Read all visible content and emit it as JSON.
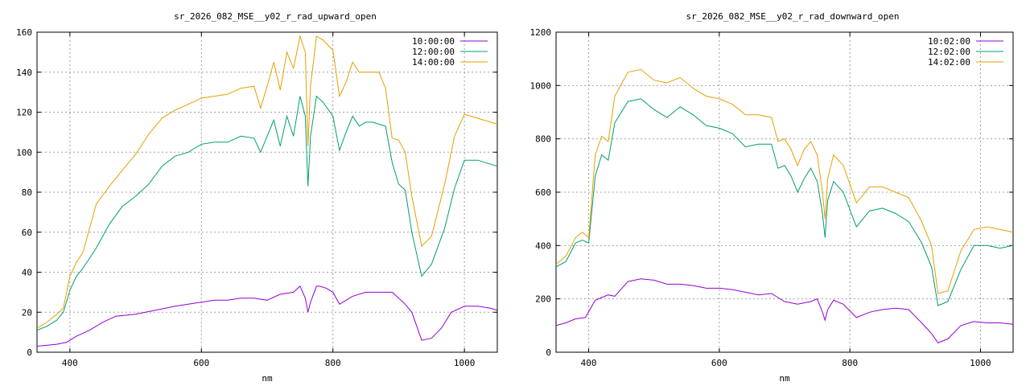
{
  "chart_data": [
    {
      "type": "line",
      "title": "sr_2026_082_MSE__y02_r_rad_upward_open",
      "xlabel": "nm",
      "ylabel": "",
      "xlim": [
        350,
        1050
      ],
      "ylim": [
        0,
        160
      ],
      "xticks": [
        "400",
        "600",
        "800",
        "1000"
      ],
      "xtick_values": [
        400,
        600,
        800,
        1000
      ],
      "yticks": [
        "0",
        "20",
        "40",
        "60",
        "80",
        "100",
        "120",
        "140",
        "160"
      ],
      "ytick_values": [
        0,
        20,
        40,
        60,
        80,
        100,
        120,
        140,
        160
      ],
      "grid": true,
      "legend_position": "top-right",
      "series": [
        {
          "name": "10:00:00",
          "color": "#9400d3",
          "x": [
            350,
            380,
            395,
            410,
            430,
            450,
            470,
            500,
            530,
            560,
            580,
            600,
            620,
            640,
            660,
            680,
            700,
            720,
            740,
            750,
            758,
            762,
            766,
            775,
            780,
            790,
            800,
            810,
            830,
            850,
            870,
            890,
            900,
            910,
            920,
            935,
            950,
            965,
            980,
            1000,
            1020,
            1040,
            1050
          ],
          "y": [
            3,
            4,
            5,
            8,
            11,
            15,
            18,
            19,
            21,
            23,
            24,
            25,
            26,
            26,
            27,
            27,
            26,
            29,
            30,
            33,
            27,
            20,
            25,
            33,
            33,
            32,
            30,
            24,
            28,
            30,
            30,
            30,
            27,
            24,
            20,
            6,
            7,
            12,
            20,
            23,
            23,
            22,
            21
          ]
        },
        {
          "name": "12:00:00",
          "color": "#009e73",
          "x": [
            350,
            365,
            380,
            390,
            400,
            410,
            420,
            440,
            460,
            480,
            500,
            520,
            540,
            560,
            580,
            600,
            620,
            640,
            660,
            680,
            690,
            700,
            710,
            720,
            730,
            740,
            750,
            758,
            762,
            766,
            775,
            785,
            800,
            810,
            820,
            830,
            840,
            850,
            860,
            870,
            880,
            890,
            900,
            910,
            920,
            935,
            950,
            970,
            985,
            1000,
            1020,
            1040,
            1050
          ],
          "y": [
            11,
            13,
            16,
            20,
            31,
            38,
            42,
            52,
            64,
            73,
            78,
            84,
            93,
            98,
            100,
            104,
            105,
            105,
            108,
            107,
            100,
            108,
            116,
            103,
            118,
            108,
            128,
            118,
            83,
            108,
            128,
            125,
            118,
            101,
            110,
            118,
            113,
            115,
            115,
            114,
            113,
            95,
            84,
            81,
            60,
            38,
            44,
            62,
            82,
            96,
            96,
            94,
            93
          ]
        },
        {
          "name": "14:00:00",
          "color": "#e69f00",
          "x": [
            350,
            365,
            380,
            390,
            400,
            410,
            420,
            440,
            460,
            480,
            500,
            520,
            540,
            560,
            580,
            600,
            620,
            640,
            660,
            680,
            690,
            700,
            710,
            720,
            730,
            740,
            750,
            758,
            762,
            766,
            775,
            785,
            800,
            810,
            820,
            830,
            840,
            850,
            860,
            870,
            880,
            890,
            900,
            910,
            920,
            935,
            950,
            970,
            985,
            1000,
            1020,
            1040,
            1050
          ],
          "y": [
            12,
            15,
            19,
            22,
            38,
            45,
            50,
            74,
            83,
            91,
            99,
            109,
            117,
            121,
            124,
            127,
            128,
            129,
            132,
            133,
            122,
            133,
            145,
            131,
            150,
            142,
            158,
            150,
            103,
            133,
            158,
            156,
            151,
            128,
            135,
            145,
            140,
            140,
            140,
            140,
            132,
            107,
            106,
            100,
            78,
            53,
            58,
            84,
            108,
            119,
            117,
            115,
            114
          ]
        }
      ]
    },
    {
      "type": "line",
      "title": "sr_2026_082_MSE__y02_r_rad_downward_open",
      "xlabel": "nm",
      "ylabel": "",
      "xlim": [
        350,
        1050
      ],
      "ylim": [
        0,
        1200
      ],
      "xticks": [
        "400",
        "600",
        "800",
        "1000"
      ],
      "xtick_values": [
        400,
        600,
        800,
        1000
      ],
      "yticks": [
        "0",
        "200",
        "400",
        "600",
        "800",
        "1000",
        "1200"
      ],
      "ytick_values": [
        0,
        200,
        400,
        600,
        800,
        1000,
        1200
      ],
      "grid": true,
      "legend_position": "top-right",
      "series": [
        {
          "name": "10:02:00",
          "color": "#9400d3",
          "x": [
            350,
            365,
            380,
            395,
            410,
            420,
            430,
            440,
            460,
            480,
            500,
            520,
            540,
            560,
            580,
            600,
            620,
            640,
            660,
            680,
            700,
            720,
            740,
            750,
            758,
            762,
            766,
            775,
            790,
            810,
            830,
            850,
            870,
            890,
            910,
            925,
            935,
            950,
            970,
            990,
            1010,
            1030,
            1050
          ],
          "y": [
            100,
            110,
            125,
            130,
            195,
            205,
            215,
            210,
            265,
            275,
            270,
            255,
            255,
            250,
            240,
            240,
            235,
            225,
            215,
            220,
            190,
            180,
            190,
            200,
            150,
            120,
            160,
            195,
            180,
            130,
            150,
            160,
            165,
            160,
            110,
            70,
            35,
            50,
            100,
            115,
            110,
            110,
            105
          ]
        },
        {
          "name": "12:02:00",
          "color": "#009e73",
          "x": [
            350,
            365,
            380,
            390,
            400,
            410,
            420,
            430,
            440,
            460,
            480,
            500,
            520,
            540,
            560,
            580,
            600,
            620,
            640,
            660,
            680,
            690,
            700,
            710,
            720,
            730,
            740,
            750,
            758,
            762,
            766,
            775,
            790,
            810,
            830,
            850,
            870,
            890,
            910,
            925,
            935,
            950,
            970,
            990,
            1010,
            1030,
            1050
          ],
          "y": [
            320,
            340,
            410,
            420,
            410,
            660,
            740,
            720,
            860,
            940,
            950,
            910,
            880,
            920,
            890,
            850,
            840,
            820,
            770,
            780,
            780,
            690,
            700,
            660,
            600,
            650,
            690,
            640,
            520,
            430,
            570,
            640,
            600,
            470,
            530,
            540,
            520,
            490,
            410,
            320,
            175,
            190,
            310,
            400,
            400,
            390,
            400
          ]
        },
        {
          "name": "14:02:00",
          "color": "#e69f00",
          "x": [
            350,
            365,
            380,
            390,
            400,
            410,
            420,
            430,
            440,
            460,
            480,
            500,
            520,
            540,
            560,
            580,
            600,
            620,
            640,
            660,
            680,
            690,
            700,
            710,
            720,
            730,
            740,
            750,
            758,
            762,
            766,
            775,
            790,
            810,
            830,
            850,
            870,
            890,
            910,
            925,
            935,
            950,
            970,
            990,
            1010,
            1030,
            1050
          ],
          "y": [
            330,
            360,
            430,
            450,
            430,
            740,
            810,
            790,
            960,
            1050,
            1060,
            1020,
            1010,
            1030,
            990,
            960,
            950,
            930,
            890,
            890,
            880,
            790,
            800,
            760,
            700,
            760,
            790,
            740,
            600,
            500,
            650,
            740,
            700,
            560,
            620,
            620,
            600,
            580,
            490,
            400,
            220,
            230,
            380,
            460,
            470,
            460,
            450
          ]
        }
      ]
    }
  ]
}
